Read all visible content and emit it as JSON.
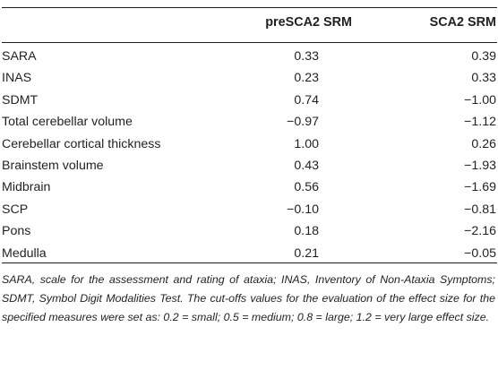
{
  "table": {
    "columns": [
      "preSCA2 SRM",
      "SCA2 SRM"
    ],
    "rows": [
      {
        "label": "SARA",
        "pre": "0.33",
        "sca2": "0.39"
      },
      {
        "label": "INAS",
        "pre": "0.23",
        "sca2": "0.33"
      },
      {
        "label": "SDMT",
        "pre": "0.74",
        "sca2": "−1.00"
      },
      {
        "label": "Total cerebellar volume",
        "pre": "−0.97",
        "sca2": "−1.12"
      },
      {
        "label": "Cerebellar cortical thickness",
        "pre": "1.00",
        "sca2": "0.26"
      },
      {
        "label": "Brainstem volume",
        "pre": "0.43",
        "sca2": "−1.93"
      },
      {
        "label": "Midbrain",
        "pre": "0.56",
        "sca2": "−1.69"
      },
      {
        "label": "SCP",
        "pre": "−0.10",
        "sca2": "−0.81"
      },
      {
        "label": "Pons",
        "pre": "0.18",
        "sca2": "−2.16"
      },
      {
        "label": "Medulla",
        "pre": "0.21",
        "sca2": "−0.05"
      }
    ]
  },
  "footnote": "SARA, scale for the assessment and rating of ataxia; INAS, Inventory of Non-Ataxia Symptoms; SDMT, Symbol Digit Modalities Test. The cut-offs values for the evaluation of the effect size for the specified measures were set as: 0.2 = small; 0.5 = medium; 0.8 = large; 1.2 = very large effect size."
}
